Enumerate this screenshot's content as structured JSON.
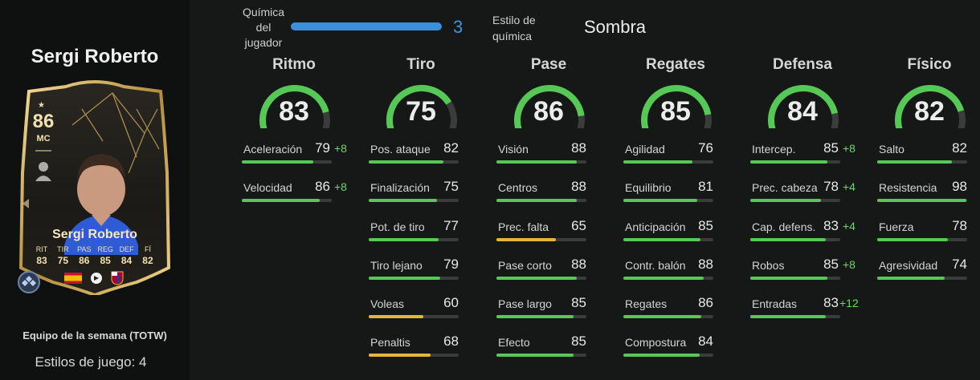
{
  "player": {
    "name": "Sergi Roberto",
    "card": {
      "rating": "86",
      "position": "MC",
      "name": "Sergi Roberto",
      "stat_labels": [
        "RIT",
        "TIR",
        "PAS",
        "REG",
        "DEF",
        "FÍ"
      ],
      "stat_values": [
        "83",
        "75",
        "86",
        "85",
        "84",
        "82"
      ]
    },
    "team_label": "Equipo de la semana (TOTW)",
    "playstyles_label": "Estilos de juego: 4"
  },
  "chemistry": {
    "label": "Química del jugador",
    "value": "3",
    "fill_fraction": 1.0,
    "style_label": "Estilo de química",
    "style_value": "Sombra"
  },
  "colors": {
    "green": "#55c855",
    "yellow": "#e7b43c",
    "track": "#3a3c3b",
    "blue": "#3b8fdc",
    "card_gold": "#f2e1b0"
  },
  "categories": [
    {
      "title": "Ritmo",
      "value": "83",
      "items": [
        {
          "label": "Aceleración",
          "value": "79",
          "boost": "+8"
        },
        {
          "label": "Velocidad",
          "value": "86",
          "boost": "+8"
        }
      ]
    },
    {
      "title": "Tiro",
      "value": "75",
      "items": [
        {
          "label": "Pos. ataque",
          "value": "82",
          "boost": ""
        },
        {
          "label": "Finalización",
          "value": "75",
          "boost": ""
        },
        {
          "label": "Pot. de tiro",
          "value": "77",
          "boost": ""
        },
        {
          "label": "Tiro lejano",
          "value": "79",
          "boost": ""
        },
        {
          "label": "Voleas",
          "value": "60",
          "boost": ""
        },
        {
          "label": "Penaltis",
          "value": "68",
          "boost": ""
        }
      ]
    },
    {
      "title": "Pase",
      "value": "86",
      "items": [
        {
          "label": "Visión",
          "value": "88",
          "boost": ""
        },
        {
          "label": "Centros",
          "value": "88",
          "boost": ""
        },
        {
          "label": "Prec. falta",
          "value": "65",
          "boost": ""
        },
        {
          "label": "Pase corto",
          "value": "88",
          "boost": ""
        },
        {
          "label": "Pase largo",
          "value": "85",
          "boost": ""
        },
        {
          "label": "Efecto",
          "value": "85",
          "boost": ""
        }
      ]
    },
    {
      "title": "Regates",
      "value": "85",
      "items": [
        {
          "label": "Agilidad",
          "value": "76",
          "boost": ""
        },
        {
          "label": "Equilibrio",
          "value": "81",
          "boost": ""
        },
        {
          "label": "Anticipación",
          "value": "85",
          "boost": ""
        },
        {
          "label": "Contr. balón",
          "value": "88",
          "boost": ""
        },
        {
          "label": "Regates",
          "value": "86",
          "boost": ""
        },
        {
          "label": "Compostura",
          "value": "84",
          "boost": ""
        }
      ]
    },
    {
      "title": "Defensa",
      "value": "84",
      "items": [
        {
          "label": "Intercep.",
          "value": "85",
          "boost": "+8"
        },
        {
          "label": "Prec. cabeza",
          "value": "78",
          "boost": "+4"
        },
        {
          "label": "Cap. defens.",
          "value": "83",
          "boost": "+4"
        },
        {
          "label": "Robos",
          "value": "85",
          "boost": "+8"
        },
        {
          "label": "Entradas",
          "value": "83",
          "boost": "+12"
        }
      ]
    },
    {
      "title": "Físico",
      "value": "82",
      "items": [
        {
          "label": "Salto",
          "value": "82",
          "boost": ""
        },
        {
          "label": "Resistencia",
          "value": "98",
          "boost": ""
        },
        {
          "label": "Fuerza",
          "value": "78",
          "boost": ""
        },
        {
          "label": "Agresividad",
          "value": "74",
          "boost": ""
        }
      ]
    }
  ]
}
